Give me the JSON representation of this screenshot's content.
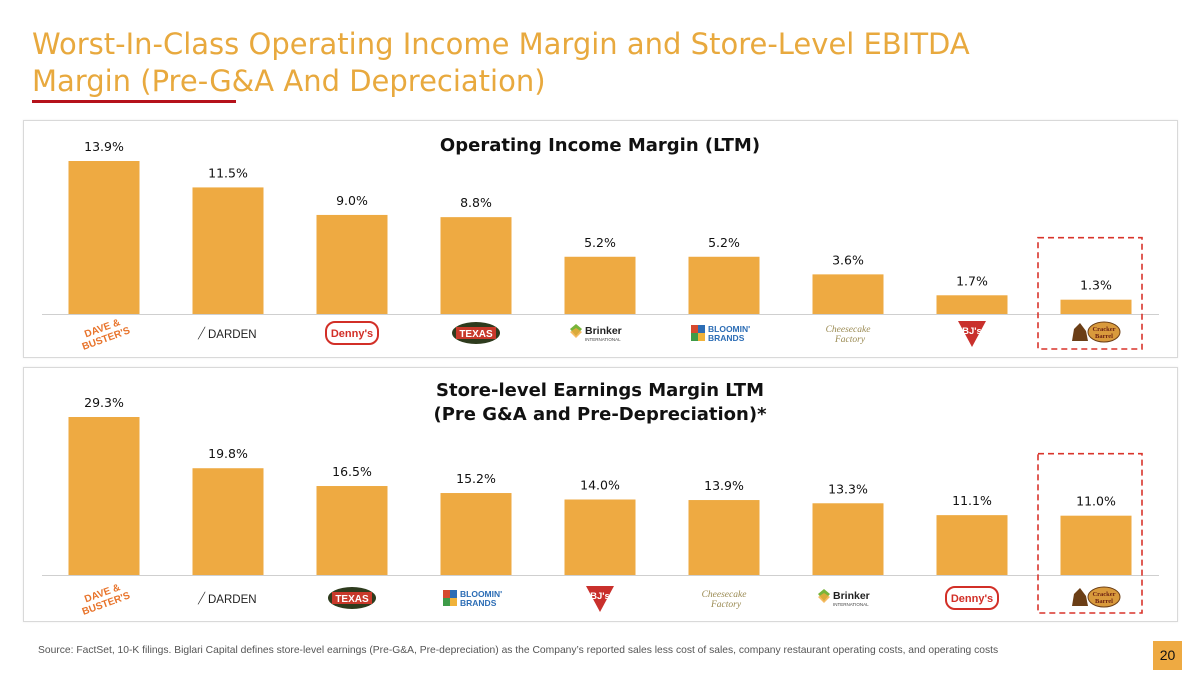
{
  "slide": {
    "title": "Worst-In-Class Operating Income Margin and Store-Level EBITDA Margin (Pre-G&A And Depreciation)",
    "footer": "Source: FactSet, 10-K filings. Biglari Capital defines store-level earnings (Pre-G&A, Pre-depreciation) as the Company’s reported sales less cost of sales, company restaurant operating costs, and operating costs",
    "page_number": "20"
  },
  "colors": {
    "bar": "#eeaa42",
    "title": "#e8a93e",
    "accent_rule": "#b5121b",
    "highlight_box": "#d9342b"
  },
  "chart_data": [
    {
      "type": "bar",
      "title_lines": [
        "Operating Income Margin (LTM)"
      ],
      "categories": [
        "Dave & Buster's",
        "Darden",
        "Denny's",
        "Texas Roadhouse",
        "Brinker International",
        "Bloomin' Brands",
        "The Cheesecake Factory",
        "BJ's",
        "Cracker Barrel"
      ],
      "values": [
        13.9,
        11.5,
        9.0,
        8.8,
        5.2,
        5.2,
        3.6,
        1.7,
        1.3
      ],
      "value_labels": [
        "13.9%",
        "11.5%",
        "9.0%",
        "8.8%",
        "5.2%",
        "5.2%",
        "3.6%",
        "1.7%",
        "1.3%"
      ],
      "logos": [
        "dave-busters",
        "darden",
        "dennys",
        "texas-roadhouse",
        "brinker",
        "bloomin",
        "cheesecake",
        "bjs",
        "cracker-barrel"
      ],
      "highlighted_index": 8,
      "ylim": [
        0,
        13.9
      ]
    },
    {
      "type": "bar",
      "title_lines": [
        "Store-level Earnings Margin LTM",
        "(Pre G&A and Pre-Depreciation)*"
      ],
      "categories": [
        "Dave & Buster's",
        "Darden",
        "Texas Roadhouse",
        "Bloomin' Brands",
        "BJ's",
        "The Cheesecake Factory",
        "Brinker International",
        "Denny's",
        "Cracker Barrel"
      ],
      "values": [
        29.3,
        19.8,
        16.5,
        15.2,
        14.0,
        13.9,
        13.3,
        11.1,
        11.0
      ],
      "value_labels": [
        "29.3%",
        "19.8%",
        "16.5%",
        "15.2%",
        "14.0%",
        "13.9%",
        "13.3%",
        "11.1%",
        "11.0%"
      ],
      "logos": [
        "dave-busters",
        "darden",
        "texas-roadhouse",
        "bloomin",
        "bjs",
        "cheesecake",
        "brinker",
        "dennys",
        "cracker-barrel"
      ],
      "highlighted_index": 8,
      "ylim": [
        0,
        29.3
      ]
    }
  ],
  "logo_text": {
    "dave-busters": [
      "DAVE &",
      "BUSTER'S"
    ],
    "darden": [
      "DARDEN"
    ],
    "dennys": [
      "Denny's"
    ],
    "texas-roadhouse": [
      "TEXAS"
    ],
    "brinker": [
      "Brinker",
      "INTERNATIONAL"
    ],
    "bloomin": [
      "BLOOMIN'",
      "BRANDS"
    ],
    "cheesecake": [
      "Cheesecake",
      "Factory"
    ],
    "bjs": [
      "BJ's"
    ],
    "cracker-barrel": [
      "Cracker",
      "Barrel"
    ]
  }
}
